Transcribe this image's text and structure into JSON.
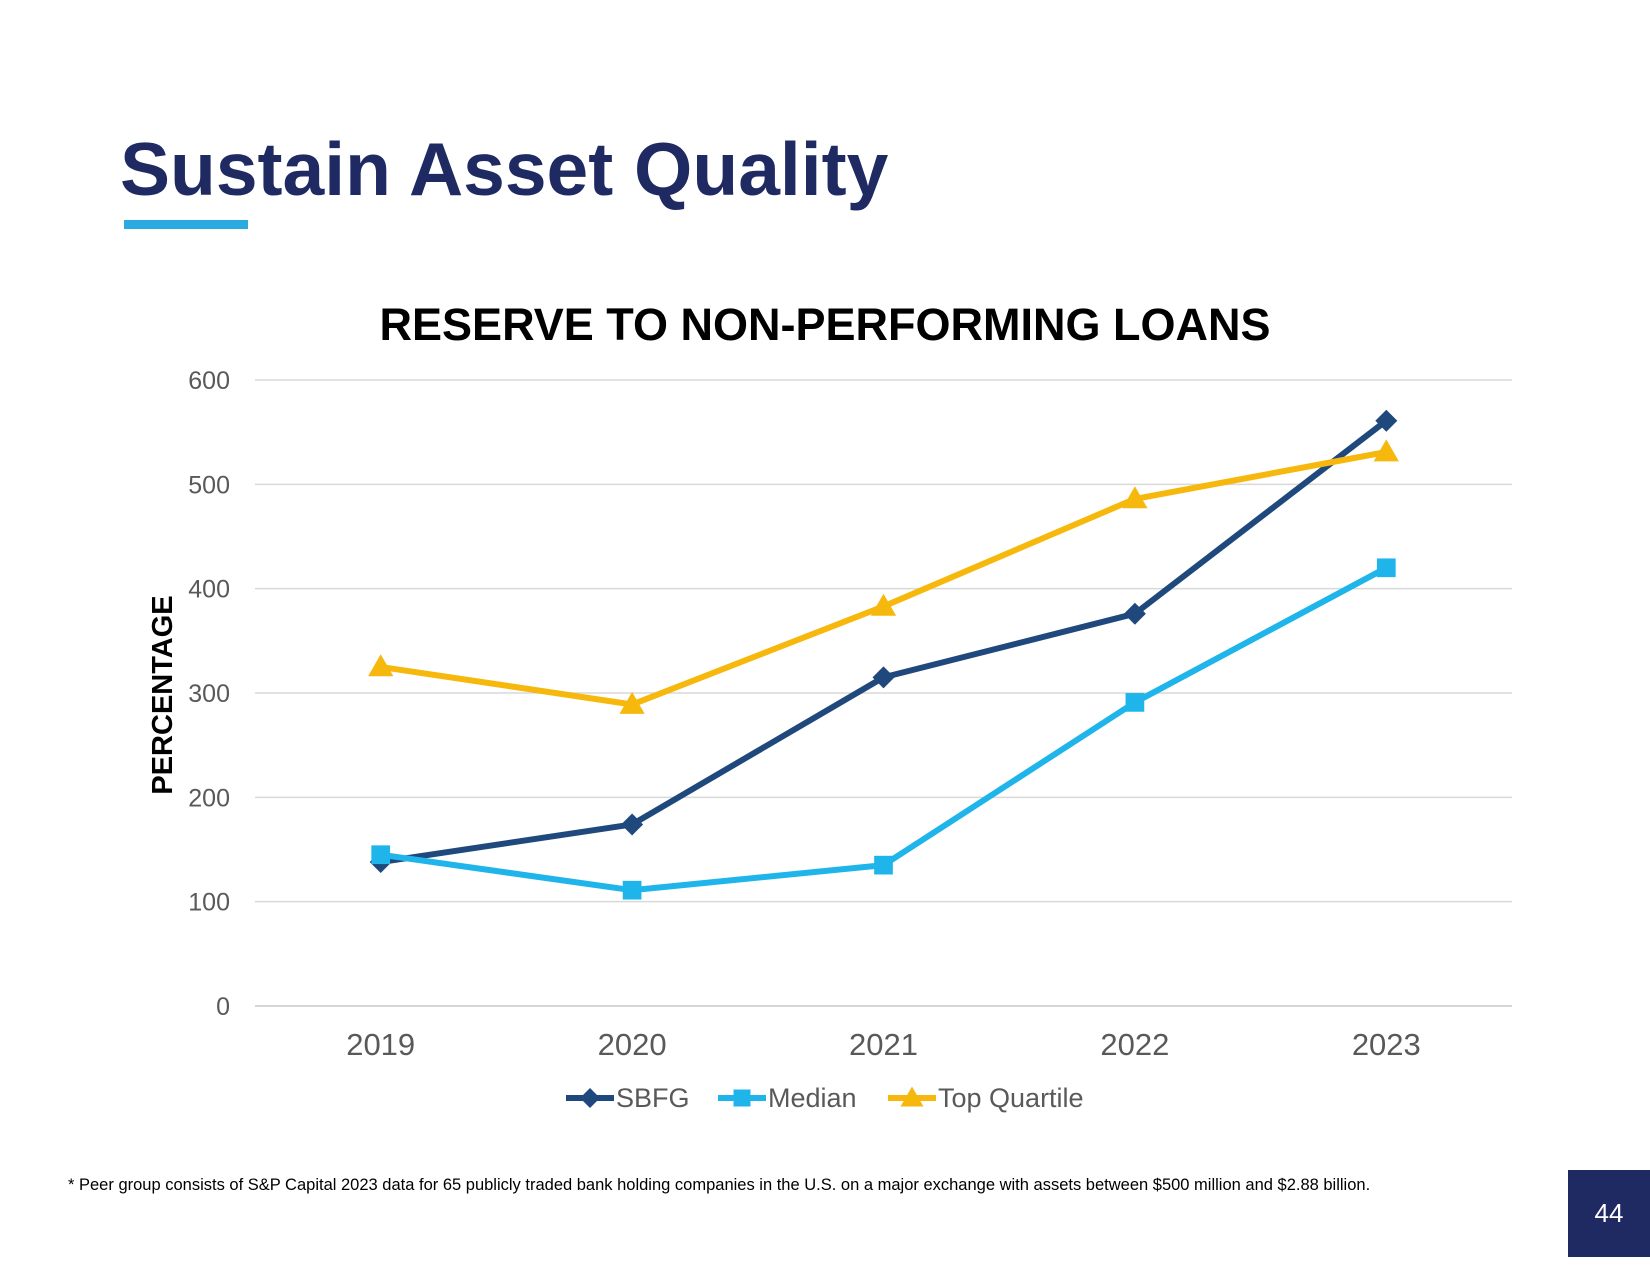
{
  "slide": {
    "title": "Sustain Asset Quality",
    "footnote": "* Peer group consists of S&P Capital 2023 data for 65 publicly traded bank holding companies in the U.S. on a major exchange with assets between $500 million and $2.88 billion.",
    "page_number": "44"
  },
  "colors": {
    "title": "#1f2a63",
    "accent": "#29abe2"
  },
  "chart_data": {
    "type": "line",
    "title": "RESERVE TO NON-PERFORMING LOANS",
    "xlabel": "",
    "ylabel": "PERCENTAGE",
    "ylim": [
      0,
      600
    ],
    "yticks": [
      0,
      100,
      200,
      300,
      400,
      500,
      600
    ],
    "grid": true,
    "legend_position": "bottom",
    "categories": [
      "2019",
      "2020",
      "2021",
      "2022",
      "2023"
    ],
    "series": [
      {
        "name": "SBFG",
        "values": [
          138,
          174,
          315,
          376,
          561
        ],
        "color": "#1f497d",
        "marker": "diamond"
      },
      {
        "name": "Median",
        "values": [
          145,
          111,
          135,
          291,
          420
        ],
        "color": "#1fb5ea",
        "marker": "square"
      },
      {
        "name": "Top Quartile",
        "values": [
          325,
          289,
          383,
          486,
          531
        ],
        "color": "#f7b80e",
        "marker": "triangle"
      }
    ]
  }
}
